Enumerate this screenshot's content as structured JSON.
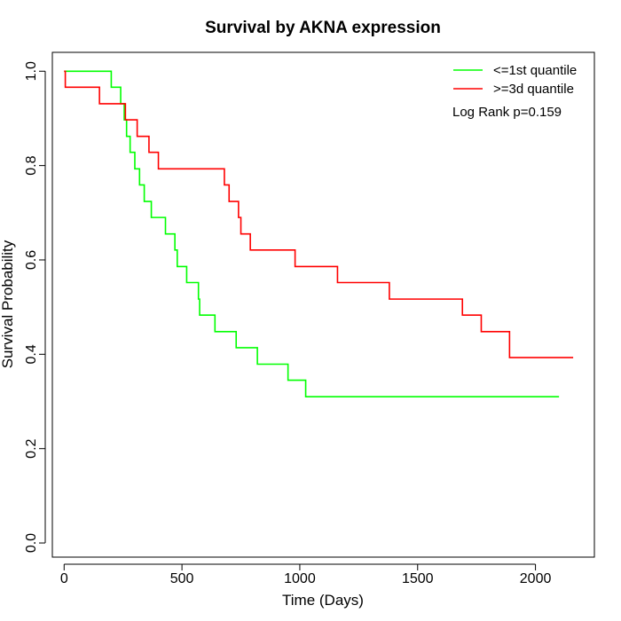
{
  "chart_data": {
    "type": "line",
    "step": true,
    "title": "Survival by AKNA expression",
    "xlabel": "Time (Days)",
    "ylabel": "Survival Probability",
    "xlim": [
      -50,
      2250
    ],
    "ylim": [
      -0.03,
      1.04
    ],
    "xticks": [
      0,
      500,
      1000,
      1500,
      2000
    ],
    "yticks": [
      0.0,
      0.2,
      0.4,
      0.6,
      0.8,
      1.0
    ],
    "xtick_labels": [
      "0",
      "500",
      "1000",
      "1500",
      "2000"
    ],
    "ytick_labels": [
      "0.0",
      "0.2",
      "0.4",
      "0.6",
      "0.8",
      "1.0"
    ],
    "grid": false,
    "legend_position": "top-right",
    "annotation": "Log Rank p=0.159",
    "series": [
      {
        "name": "<=1st quantile",
        "color": "#00ff00",
        "x": [
          0,
          200,
          240,
          255,
          265,
          280,
          300,
          320,
          340,
          370,
          430,
          470,
          480,
          520,
          570,
          575,
          640,
          730,
          820,
          950,
          1025,
          2100
        ],
        "y": [
          1.0,
          0.966,
          0.931,
          0.897,
          0.862,
          0.828,
          0.793,
          0.759,
          0.724,
          0.69,
          0.655,
          0.621,
          0.586,
          0.552,
          0.517,
          0.483,
          0.448,
          0.414,
          0.379,
          0.345,
          0.31,
          0.31
        ]
      },
      {
        "name": ">=3d quantile",
        "color": "#ff0000",
        "x": [
          0,
          5,
          150,
          250,
          260,
          310,
          360,
          400,
          670,
          680,
          700,
          740,
          745,
          750,
          790,
          980,
          1160,
          1380,
          1690,
          1770,
          1890,
          2160
        ],
        "y": [
          1.0,
          0.966,
          0.931,
          0.931,
          0.897,
          0.862,
          0.828,
          0.793,
          0.793,
          0.759,
          0.724,
          0.69,
          0.69,
          0.655,
          0.621,
          0.586,
          0.552,
          0.517,
          0.483,
          0.448,
          0.393,
          0.393
        ]
      }
    ]
  }
}
